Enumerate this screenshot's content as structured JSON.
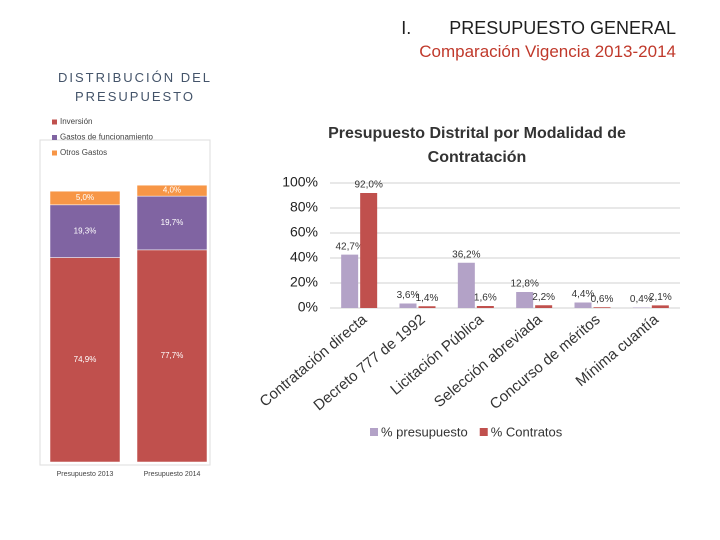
{
  "header": {
    "section": "I.",
    "title": "PRESUPUESTO GENERAL",
    "subtitle": "Comparación Vigencia 2013-2014",
    "heading": "DISTRIBUCIÓN DEL PRESUPUESTO"
  },
  "chart_data": [
    {
      "type": "stacked_bar",
      "categories": [
        "Presupuesto 2013",
        "Presupuesto 2014"
      ],
      "series": [
        {
          "name": "Inversión",
          "color": "#c0504d",
          "values": [
            74.9,
            77.7
          ],
          "value_labels": [
            "74,9%",
            "77,7%"
          ]
        },
        {
          "name": "Gastos de funcionamiento",
          "color": "#8064a2",
          "values": [
            19.3,
            19.7
          ],
          "value_labels": [
            "19,3%",
            "19,7%"
          ]
        },
        {
          "name": "Otros Gastos",
          "color": "#f79646",
          "values": [
            5.0,
            4.0
          ],
          "value_labels": [
            "5,0%",
            "4,0%"
          ]
        }
      ],
      "ylim": [
        0,
        100
      ],
      "legend": "top-left"
    },
    {
      "type": "bar",
      "title": "Presupuesto Distrital por Modalidad de Contratación",
      "categories": [
        "Contratación directa",
        "Decreto 777 de 1992",
        "Licitación Pública",
        "Selección abreviada",
        "Concurso de méritos",
        "Mínima cuantía"
      ],
      "series": [
        {
          "name": "% presupuesto",
          "color": "#b3a2c7",
          "values": [
            42.7,
            3.6,
            36.2,
            12.8,
            4.4,
            0.4
          ],
          "value_labels": [
            "42,7%",
            "3,6%",
            "36,2%",
            "12,8%",
            "4,4%",
            "0,4%"
          ]
        },
        {
          "name": "% Contratos",
          "color": "#c0504d",
          "values": [
            92.0,
            1.4,
            1.6,
            2.2,
            0.6,
            2.1
          ],
          "value_labels": [
            "92,0%",
            "1,4%",
            "1,6%",
            "2,2%",
            "0,6%",
            "2,1%"
          ]
        }
      ],
      "ylim": [
        0,
        100
      ],
      "yticks": [
        {
          "value": 0,
          "label": "0%"
        },
        {
          "value": 20,
          "label": "20%"
        },
        {
          "value": 40,
          "label": "40%"
        },
        {
          "value": 60,
          "label": "60%"
        },
        {
          "value": 80,
          "label": "80%"
        },
        {
          "value": 100,
          "label": "100%"
        }
      ],
      "grid": true,
      "legend": "bottom"
    }
  ]
}
